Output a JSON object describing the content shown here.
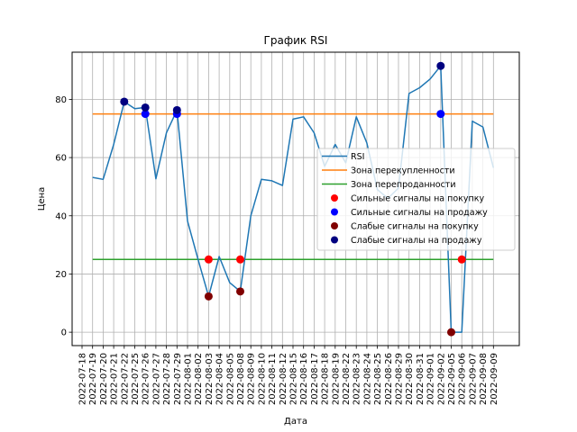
{
  "chart_data": {
    "type": "line",
    "title": "График RSI",
    "xlabel": "Дата",
    "ylabel": "Цена",
    "ylim": [
      -4.6,
      96.2
    ],
    "y_ticks": [
      0,
      20,
      40,
      60,
      80
    ],
    "grid": true,
    "legend_position": "center-right",
    "x_ticks": [
      "2022-07-18",
      "2022-07-19",
      "2022-07-20",
      "2022-07-21",
      "2022-07-22",
      "2022-07-25",
      "2022-07-26",
      "2022-07-27",
      "2022-07-28",
      "2022-07-29",
      "2022-08-01",
      "2022-08-02",
      "2022-08-03",
      "2022-08-04",
      "2022-08-05",
      "2022-08-08",
      "2022-08-09",
      "2022-08-10",
      "2022-08-11",
      "2022-08-12",
      "2022-08-15",
      "2022-08-16",
      "2022-08-17",
      "2022-08-18",
      "2022-08-19",
      "2022-08-22",
      "2022-08-23",
      "2022-08-24",
      "2022-08-25",
      "2022-08-26",
      "2022-08-29",
      "2022-08-30",
      "2022-08-31",
      "2022-09-01",
      "2022-09-02",
      "2022-09-05",
      "2022-09-06",
      "2022-09-07",
      "2022-09-08",
      "2022-09-09"
    ],
    "series": [
      {
        "name": "RSI",
        "color": "#1f77b4",
        "kind": "line",
        "x": [
          "2022-07-19",
          "2022-07-20",
          "2022-07-21",
          "2022-07-22",
          "2022-07-25",
          "2022-07-26",
          "2022-07-27",
          "2022-07-28",
          "2022-07-29",
          "2022-08-01",
          "2022-08-02",
          "2022-08-03",
          "2022-08-04",
          "2022-08-05",
          "2022-08-08",
          "2022-08-09",
          "2022-08-10",
          "2022-08-11",
          "2022-08-12",
          "2022-08-15",
          "2022-08-16",
          "2022-08-17",
          "2022-08-18",
          "2022-08-19",
          "2022-08-22",
          "2022-08-23",
          "2022-08-24",
          "2022-08-25",
          "2022-08-26",
          "2022-08-29",
          "2022-08-30",
          "2022-08-31",
          "2022-09-01",
          "2022-09-02",
          "2022-09-05",
          "2022-09-06",
          "2022-09-07",
          "2022-09-08",
          "2022-09-09"
        ],
        "values": [
          53.2,
          52.5,
          64.5,
          79.2,
          76.8,
          77.2,
          52.7,
          68.5,
          76.3,
          38.2,
          25.0,
          12.3,
          26.0,
          17.0,
          14.0,
          40.0,
          52.5,
          52.0,
          50.4,
          73.2,
          74.0,
          68.5,
          57.0,
          64.5,
          58.2,
          74.0,
          65.0,
          49.0,
          46.0,
          49.5,
          82.0,
          84.0,
          87.0,
          91.5,
          0.0,
          0.0,
          72.5,
          70.5,
          56.5
        ]
      },
      {
        "name": "Зона перекупленности",
        "color": "#ff7f0e",
        "kind": "hline",
        "value": 75,
        "x_range": [
          "2022-07-19",
          "2022-09-09"
        ]
      },
      {
        "name": "Зона перепроданности",
        "color": "#2ca02c",
        "kind": "hline",
        "value": 25,
        "x_range": [
          "2022-07-19",
          "2022-09-09"
        ]
      },
      {
        "name": "Сильные сигналы на покупку",
        "color": "#ff0000",
        "kind": "scatter",
        "points": [
          {
            "x": "2022-08-03",
            "y": 25
          },
          {
            "x": "2022-08-08",
            "y": 25
          },
          {
            "x": "2022-09-06",
            "y": 25
          }
        ]
      },
      {
        "name": "Сильные сигналы на продажу",
        "color": "#0000ff",
        "kind": "scatter",
        "points": [
          {
            "x": "2022-07-26",
            "y": 75
          },
          {
            "x": "2022-07-29",
            "y": 75
          },
          {
            "x": "2022-09-02",
            "y": 75
          }
        ]
      },
      {
        "name": "Слабые сигналы на покупку",
        "color": "#800000",
        "kind": "scatter",
        "points": [
          {
            "x": "2022-08-03",
            "y": 12.3
          },
          {
            "x": "2022-08-08",
            "y": 14.0
          },
          {
            "x": "2022-09-05",
            "y": 0.0
          }
        ]
      },
      {
        "name": "Слабые сигналы на продажу",
        "color": "#000080",
        "kind": "scatter",
        "points": [
          {
            "x": "2022-07-22",
            "y": 79.2
          },
          {
            "x": "2022-07-26",
            "y": 77.2
          },
          {
            "x": "2022-07-29",
            "y": 76.3
          },
          {
            "x": "2022-09-02",
            "y": 91.5
          }
        ]
      }
    ]
  }
}
